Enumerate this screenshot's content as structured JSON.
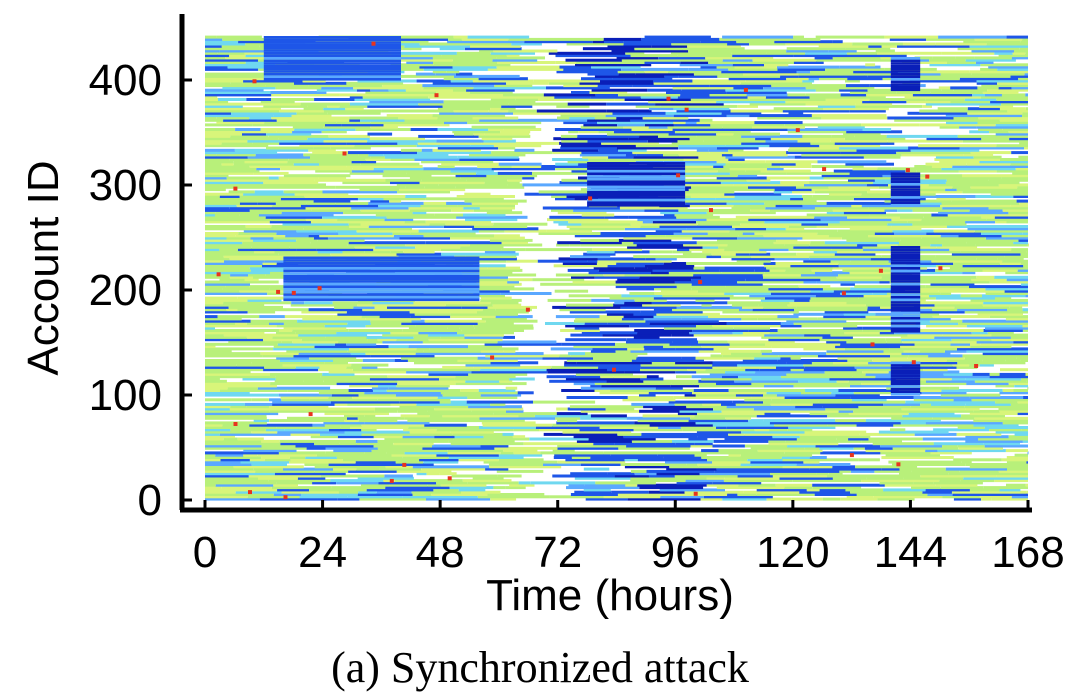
{
  "chart_data": {
    "type": "heatmap",
    "title": "",
    "xlabel": "Time (hours)",
    "ylabel": "Account ID",
    "xlim": [
      0,
      168
    ],
    "ylim": [
      0,
      450
    ],
    "xticks": [
      "0",
      "24",
      "48",
      "72",
      "96",
      "120",
      "144",
      "168"
    ],
    "yticks": [
      "0",
      "100",
      "200",
      "300",
      "400"
    ],
    "grid": false,
    "legend": "none",
    "colors": {
      "dark_blue": "#0a1fb8",
      "blue": "#1e56e8",
      "light_blue": "#5aa8ff",
      "cyan": "#6fd8f0",
      "light_green": "#b8f07a",
      "yellow_green": "#d8f57a",
      "red": "#e8331e"
    },
    "activity_blocks": [
      {
        "x": [
          12,
          40
        ],
        "y": [
          400,
          440
        ],
        "level": "blue"
      },
      {
        "x": [
          16,
          56
        ],
        "y": [
          190,
          230
        ],
        "level": "blue"
      },
      {
        "x": [
          78,
          98
        ],
        "y": [
          280,
          320
        ],
        "level": "dark_blue"
      },
      {
        "x": [
          140,
          146
        ],
        "y": [
          390,
          420
        ],
        "level": "dark_blue"
      },
      {
        "x": [
          140,
          146
        ],
        "y": [
          280,
          310
        ],
        "level": "dark_blue"
      },
      {
        "x": [
          140,
          146
        ],
        "y": [
          160,
          240
        ],
        "level": "dark_blue"
      },
      {
        "x": [
          140,
          146
        ],
        "y": [
          100,
          130
        ],
        "level": "dark_blue"
      }
    ],
    "gaps": [
      {
        "x": [
          66,
          72
        ],
        "y": [
          0,
          440
        ]
      },
      {
        "x": [
          140,
          146
        ],
        "y": [
          320,
          380
        ]
      }
    ]
  },
  "caption": "(a) Synchronized attack"
}
